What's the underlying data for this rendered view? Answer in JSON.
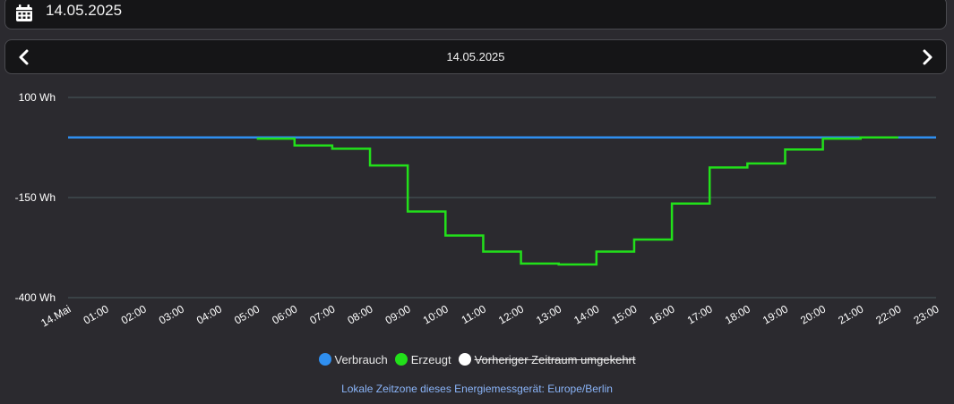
{
  "date_picker": {
    "value": "14.05.2025",
    "icon": "calendar-icon"
  },
  "nav": {
    "prev_icon": "chevron-left-icon",
    "next_icon": "chevron-right-icon",
    "current": "14.05.2025"
  },
  "legend": [
    {
      "label": "Verbrauch",
      "color": "#2f8ff0",
      "hidden": false
    },
    {
      "label": "Erzeugt",
      "color": "#22e01a",
      "hidden": false
    },
    {
      "label": "Vorheriger Zeitraum umgekehrt",
      "color": "#ffffff",
      "hidden": true
    }
  ],
  "footer_note": "Lokale Zeitzone dieses Energiemessgerät: Europe/Berlin",
  "chart_data": {
    "type": "line",
    "step": true,
    "x": [
      "14.Mai",
      "01:00",
      "02:00",
      "03:00",
      "04:00",
      "05:00",
      "06:00",
      "07:00",
      "08:00",
      "09:00",
      "10:00",
      "11:00",
      "12:00",
      "13:00",
      "14:00",
      "15:00",
      "16:00",
      "17:00",
      "18:00",
      "19:00",
      "20:00",
      "21:00",
      "22:00",
      "23:00"
    ],
    "y_ticks": [
      {
        "value": 100,
        "label": "100 Wh"
      },
      {
        "value": -150,
        "label": "-150 Wh"
      },
      {
        "value": -400,
        "label": "-400 Wh"
      }
    ],
    "ylim": [
      -400,
      100
    ],
    "grid": true,
    "legend_position": "bottom",
    "series": [
      {
        "name": "Verbrauch",
        "color": "#2f8ff0",
        "values": [
          0,
          0,
          0,
          0,
          0,
          0,
          0,
          0,
          0,
          0,
          0,
          0,
          0,
          0,
          0,
          0,
          0,
          0,
          0,
          0,
          0,
          0,
          0,
          0
        ]
      },
      {
        "name": "Erzeugt",
        "color": "#22e01a",
        "values": [
          null,
          null,
          null,
          null,
          null,
          -3,
          -20,
          -28,
          -70,
          -185,
          -245,
          -285,
          -315,
          -317,
          -285,
          -255,
          -165,
          -75,
          -65,
          -30,
          -3,
          0,
          null,
          null
        ]
      }
    ]
  }
}
